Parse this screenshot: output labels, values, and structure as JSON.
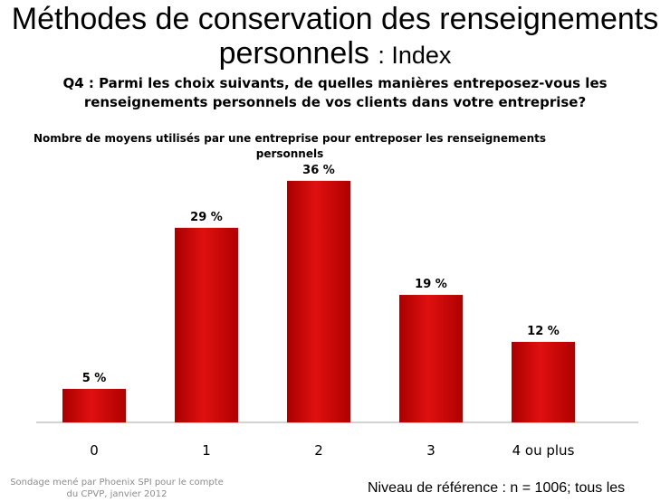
{
  "slide": {
    "title": "Méthodes de conservation des renseignements personnels",
    "title_suffix": ": Index",
    "question": "Q4 : Parmi les choix suivants, de quelles manières entreposez-vous les renseignements personnels de vos clients dans votre entreprise?",
    "footer_source": "Sondage mené par Phoenix SPI pour le compte du CPVP, janvier 2012",
    "footer_base": "Niveau de référence : n = 1006; tous les"
  },
  "chart_data": {
    "type": "bar",
    "title": "Nombre de moyens utilisés par une entreprise pour entreposer les renseignements personnels",
    "categories": [
      "0",
      "1",
      "2",
      "3",
      "4 ou plus"
    ],
    "values": [
      5,
      29,
      36,
      19,
      12
    ],
    "data_labels": [
      "5 %",
      "29 %",
      "36 %",
      "19 %",
      "12 %"
    ],
    "unit": "%",
    "ylim": [
      0,
      40
    ],
    "grid": false,
    "legend": "none",
    "bar_color": "#cc0000"
  }
}
